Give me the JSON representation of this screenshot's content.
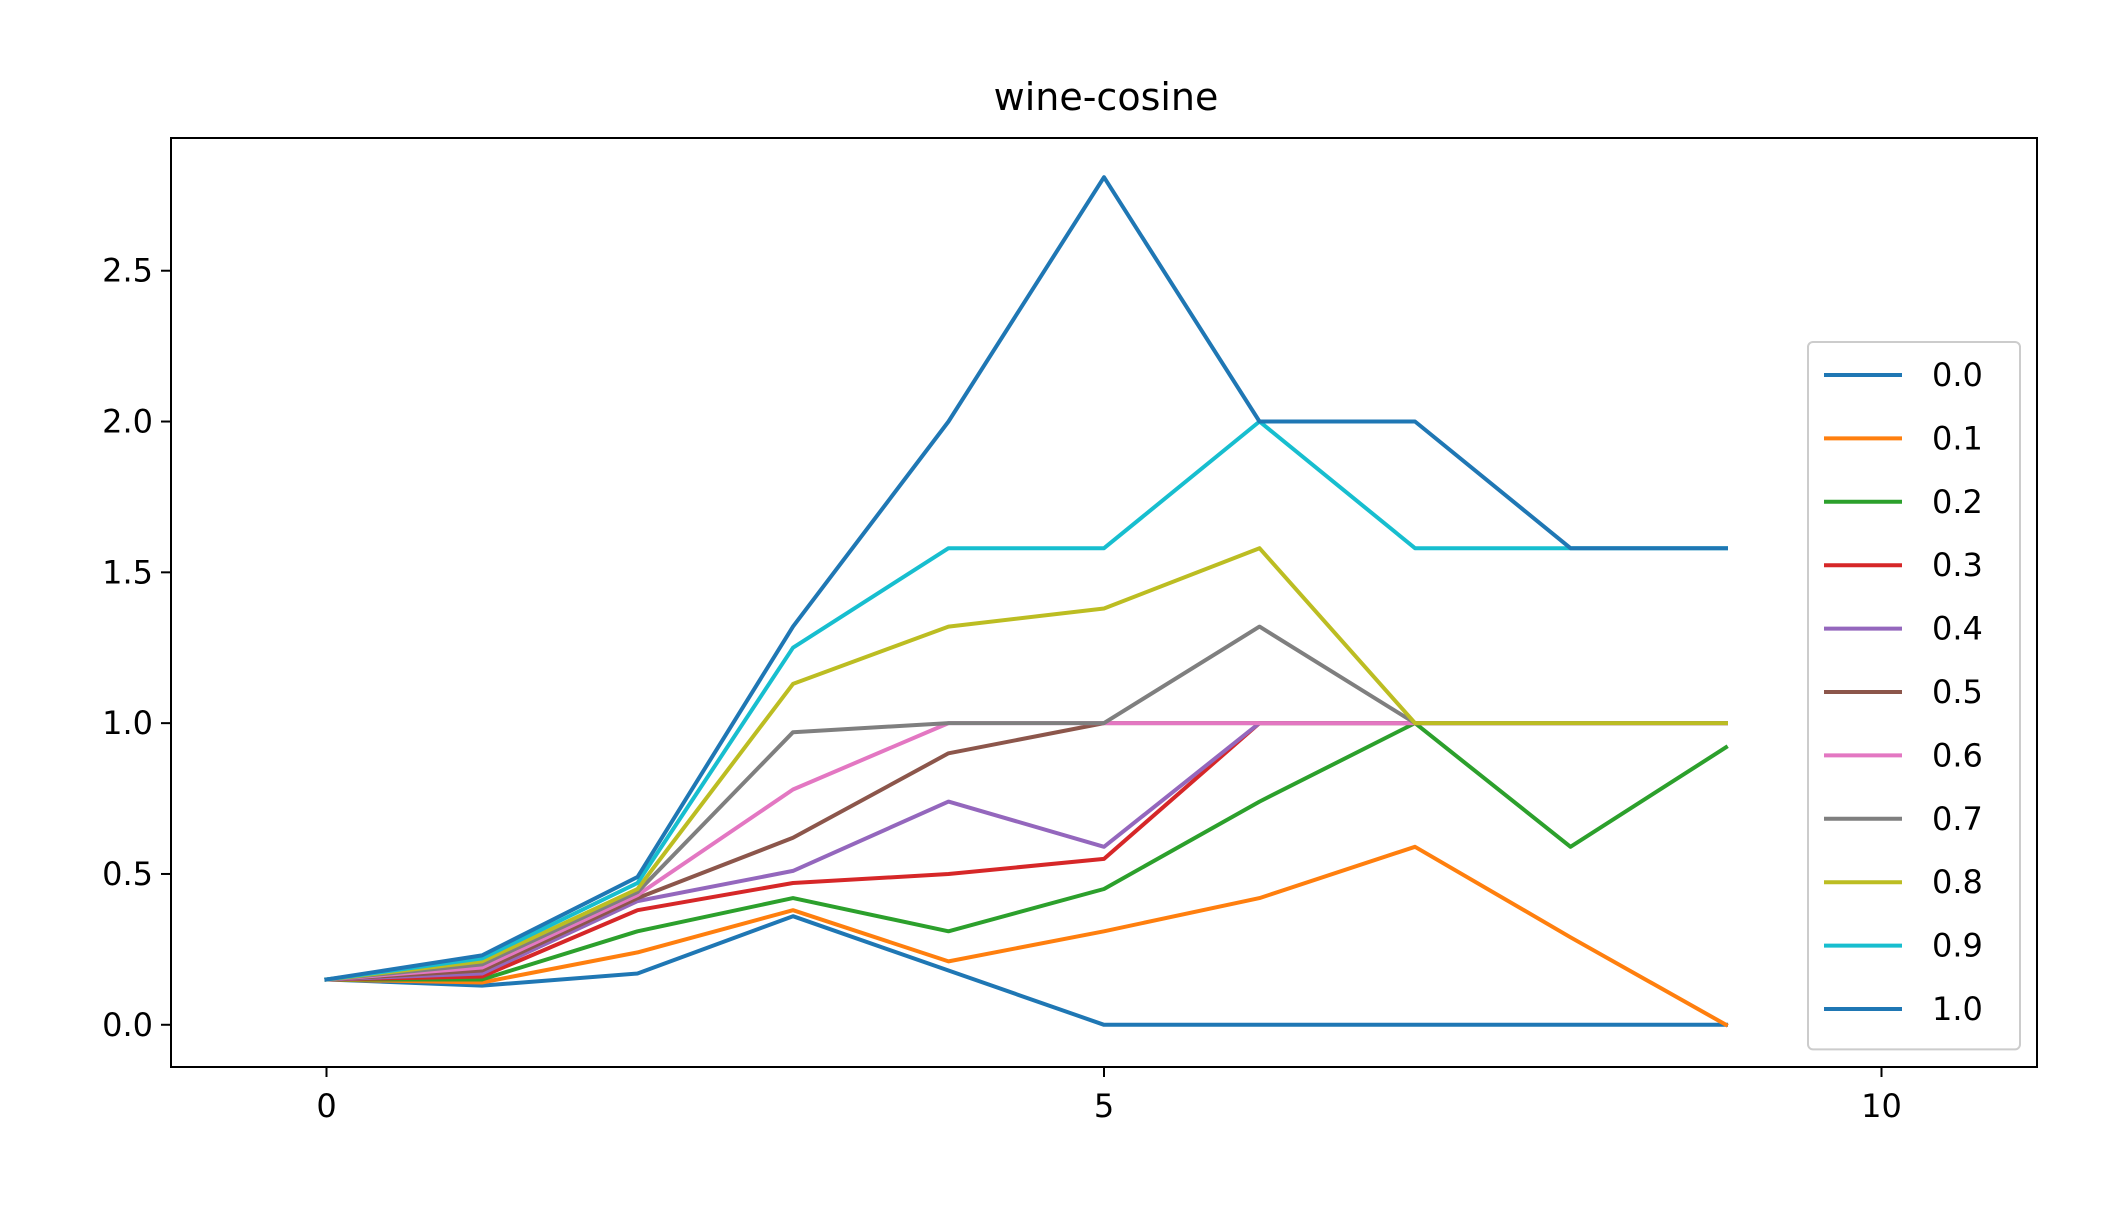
{
  "chart_data": {
    "type": "line",
    "title": "wine-cosine",
    "xlabel": "",
    "ylabel": "",
    "xlim": [
      -1.0,
      11.0
    ],
    "ylim": [
      -0.14,
      2.94
    ],
    "x_ticks": [
      0,
      5,
      10
    ],
    "x_tick_labels": [
      "0",
      "5",
      "10"
    ],
    "y_ticks": [
      0.0,
      0.5,
      1.0,
      1.5,
      2.0,
      2.5
    ],
    "y_tick_labels": [
      "0.0",
      "0.5",
      "1.0",
      "1.5",
      "2.0",
      "2.5"
    ],
    "grid": false,
    "legend_position": "lower-right",
    "x": [
      0,
      1,
      2,
      3,
      4,
      5,
      6,
      7,
      8,
      9
    ],
    "series": [
      {
        "name": "0.0",
        "color": "#1f77b4",
        "values": [
          0.15,
          0.13,
          0.17,
          0.36,
          0.18,
          0.0,
          0.0,
          0.0,
          0.0,
          0.0
        ]
      },
      {
        "name": "0.1",
        "color": "#ff7f0e",
        "values": [
          0.15,
          0.14,
          0.24,
          0.38,
          0.21,
          0.31,
          0.42,
          0.59,
          0.29,
          0.0
        ]
      },
      {
        "name": "0.2",
        "color": "#2ca02c",
        "values": [
          0.15,
          0.15,
          0.31,
          0.42,
          0.31,
          0.45,
          0.74,
          1.0,
          0.59,
          0.92
        ]
      },
      {
        "name": "0.3",
        "color": "#d62728",
        "values": [
          0.15,
          0.16,
          0.38,
          0.47,
          0.5,
          0.55,
          1.0,
          1.0,
          1.0,
          1.0
        ]
      },
      {
        "name": "0.4",
        "color": "#9467bd",
        "values": [
          0.15,
          0.17,
          0.41,
          0.51,
          0.74,
          0.59,
          1.0,
          1.0,
          1.0,
          1.0
        ]
      },
      {
        "name": "0.5",
        "color": "#8c564b",
        "values": [
          0.15,
          0.18,
          0.42,
          0.62,
          0.9,
          1.0,
          1.0,
          1.0,
          1.0,
          1.0
        ]
      },
      {
        "name": "0.6",
        "color": "#e377c2",
        "values": [
          0.15,
          0.19,
          0.43,
          0.78,
          1.0,
          1.0,
          1.0,
          1.0,
          1.0,
          1.0
        ]
      },
      {
        "name": "0.7",
        "color": "#7f7f7f",
        "values": [
          0.15,
          0.2,
          0.44,
          0.97,
          1.0,
          1.0,
          1.32,
          1.0,
          1.0,
          1.0
        ]
      },
      {
        "name": "0.8",
        "color": "#bcbd22",
        "values": [
          0.15,
          0.21,
          0.45,
          1.13,
          1.32,
          1.38,
          1.58,
          1.0,
          1.0,
          1.0
        ]
      },
      {
        "name": "0.9",
        "color": "#17becf",
        "values": [
          0.15,
          0.22,
          0.47,
          1.25,
          1.58,
          1.58,
          2.0,
          1.58,
          1.58,
          1.58
        ]
      },
      {
        "name": "1.0",
        "color": "#1f77b4",
        "values": [
          0.15,
          0.23,
          0.49,
          1.32,
          2.0,
          2.81,
          2.0,
          2.0,
          1.58,
          1.58
        ]
      }
    ]
  }
}
